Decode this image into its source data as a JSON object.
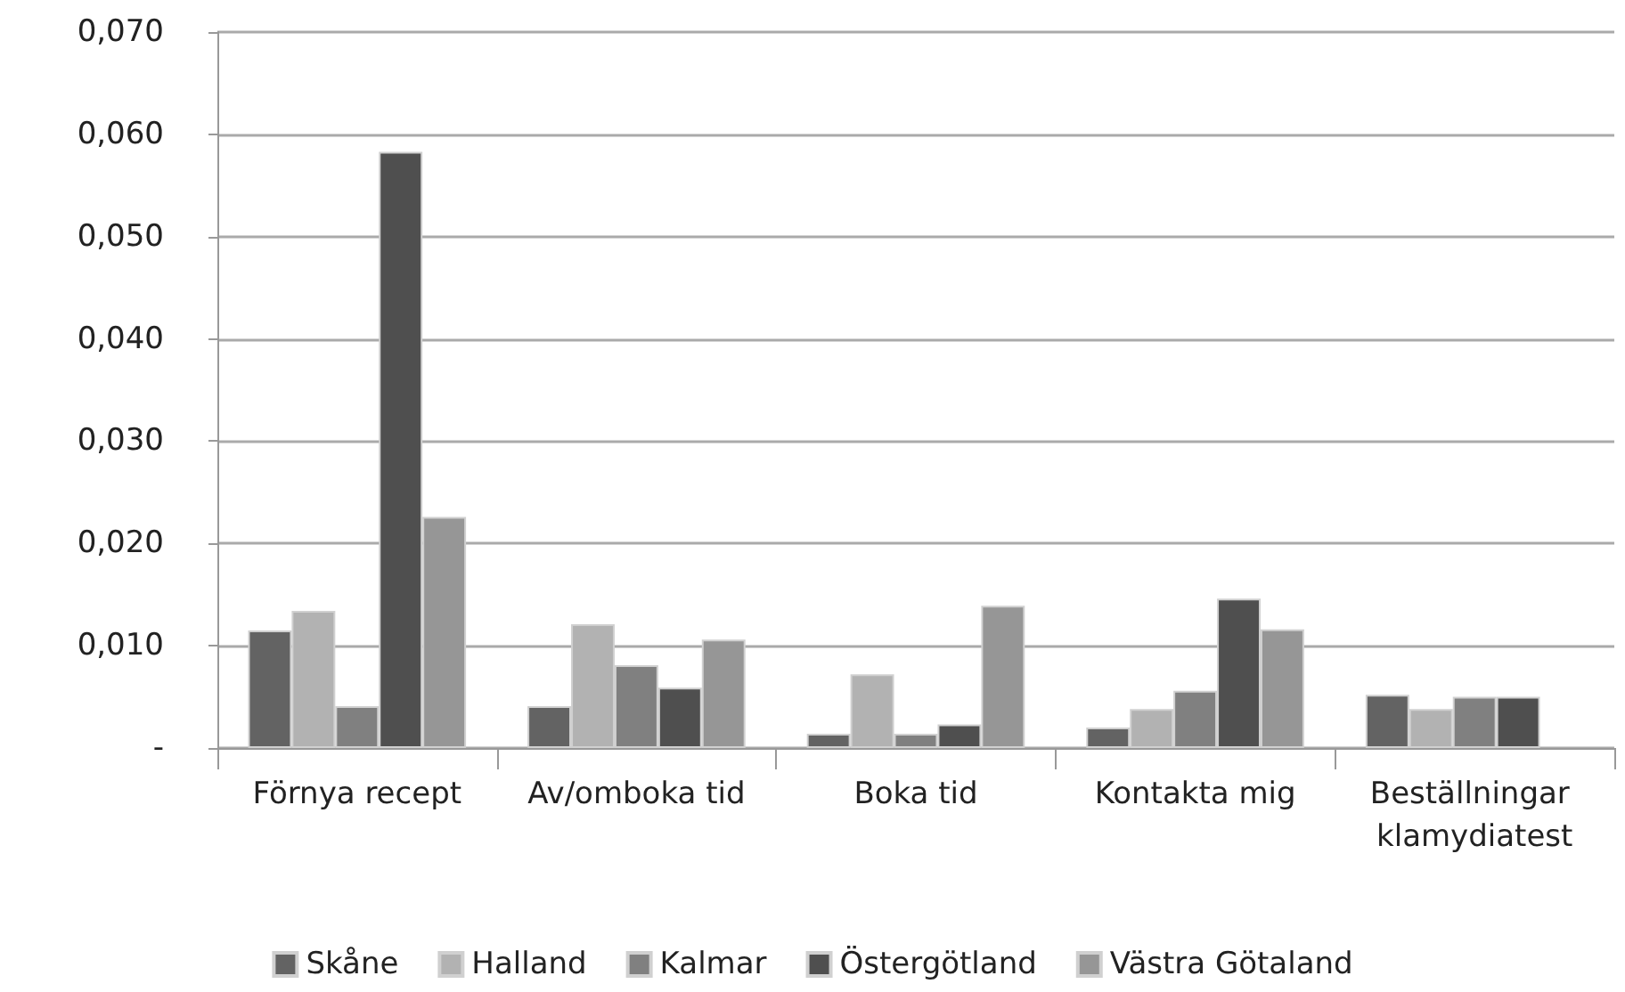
{
  "chart_data": {
    "type": "bar",
    "categories": [
      "Förnya recept",
      "Av/omboka tid",
      "Boka tid",
      "Kontakta mig",
      "Beställningar klamydiatest"
    ],
    "series": [
      {
        "name": "Skåne",
        "color": "#636363",
        "values": [
          0.0115,
          0.0041,
          0.0014,
          0.002,
          0.0052
        ]
      },
      {
        "name": "Halland",
        "color": "#b2b2b2",
        "values": [
          0.0134,
          0.0121,
          0.0072,
          0.0038,
          0.0038
        ]
      },
      {
        "name": "Kalmar",
        "color": "#808080",
        "values": [
          0.0041,
          0.0081,
          0.0014,
          0.0056,
          0.005
        ]
      },
      {
        "name": "Östergötland",
        "color": "#4f4f4f",
        "values": [
          0.0583,
          0.0059,
          0.0023,
          0.0146,
          0.005
        ]
      },
      {
        "name": "Västra Götaland",
        "color": "#969696",
        "values": [
          0.0226,
          0.0106,
          0.0139,
          0.0116,
          null
        ]
      }
    ],
    "ylim": [
      0,
      0.07
    ],
    "yticks": [
      {
        "value": 0,
        "label": "-"
      },
      {
        "value": 0.01,
        "label": "0,010"
      },
      {
        "value": 0.02,
        "label": "0,020"
      },
      {
        "value": 0.03,
        "label": "0,030"
      },
      {
        "value": 0.04,
        "label": "0,040"
      },
      {
        "value": 0.05,
        "label": "0,050"
      },
      {
        "value": 0.06,
        "label": "0,060"
      },
      {
        "value": 0.07,
        "label": "0,070"
      }
    ],
    "grid": "y",
    "legend": "bottom"
  }
}
